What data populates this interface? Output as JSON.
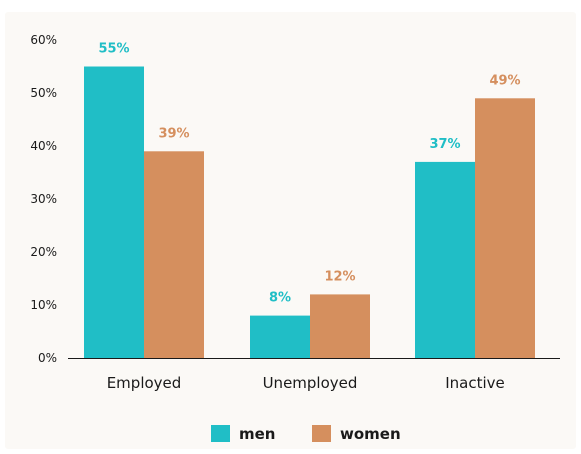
{
  "chart_data": {
    "type": "bar",
    "title": "",
    "xlabel": "",
    "ylabel": "",
    "categories": [
      "Employed",
      "Unemployed",
      "Inactive"
    ],
    "series": [
      {
        "name": "men",
        "values": [
          55,
          8,
          37
        ],
        "labels": [
          "55%",
          "8%",
          "37%"
        ],
        "color": "#20bec6"
      },
      {
        "name": "women",
        "values": [
          39,
          12,
          49
        ],
        "labels": [
          "39%",
          "12%",
          "49%"
        ],
        "color": "#d58f5e"
      }
    ],
    "ylim": [
      0,
      60
    ],
    "yticks": [
      0,
      10,
      20,
      30,
      40,
      50,
      60
    ],
    "ytick_labels": [
      "0%",
      "10%",
      "20%",
      "30%",
      "40%",
      "50%",
      "60%"
    ],
    "grid": false,
    "legend_position": "bottom-center"
  }
}
